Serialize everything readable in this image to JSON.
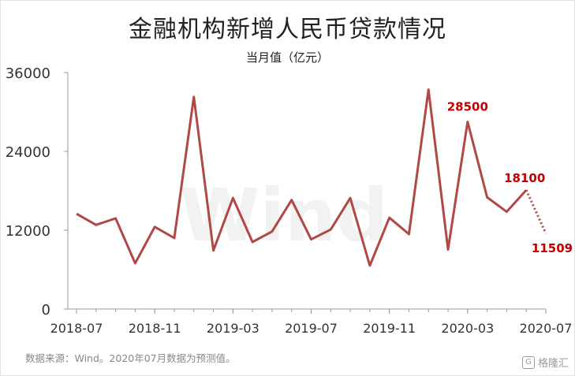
{
  "title": "金融机构新增人民币贷款情况",
  "subtitle": "当月值（亿元）",
  "footer": "数据来源：Wind。2020年07月数据为预测值。",
  "brand": "格隆汇",
  "watermark": "Wind",
  "chart_data": {
    "type": "line",
    "title": "金融机构新增人民币贷款情况",
    "subtitle": "当月值（亿元）",
    "ylim": [
      0,
      36000
    ],
    "yticks": [
      0,
      12000,
      24000,
      36000
    ],
    "xtick_labels": [
      "2018-07",
      "2018-11",
      "2019-03",
      "2019-07",
      "2019-11",
      "2020-03",
      "2020-07"
    ],
    "x": [
      "2018-07",
      "2018-08",
      "2018-09",
      "2018-10",
      "2018-11",
      "2018-12",
      "2019-01",
      "2019-02",
      "2019-03",
      "2019-04",
      "2019-05",
      "2019-06",
      "2019-07",
      "2019-08",
      "2019-09",
      "2019-10",
      "2019-11",
      "2019-12",
      "2020-01",
      "2020-02",
      "2020-03",
      "2020-04",
      "2020-05",
      "2020-06",
      "2020-07"
    ],
    "series": [
      {
        "values": [
          14500,
          12800,
          13800,
          6970,
          12500,
          10800,
          32300,
          8900,
          16900,
          10200,
          11800,
          16600,
          10600,
          12100,
          16900,
          6613,
          13900,
          11400,
          33400,
          9057,
          28500,
          17000,
          14800,
          18100,
          11509
        ],
        "color": "#b04846",
        "dashed_from_index": 23
      }
    ],
    "annotations": [
      {
        "x": "2020-03",
        "label": "28500"
      },
      {
        "x": "2020-06",
        "label": "18100"
      },
      {
        "x": "2020-07",
        "label": "11509"
      }
    ],
    "label_color": "#c00000",
    "grid": false
  }
}
